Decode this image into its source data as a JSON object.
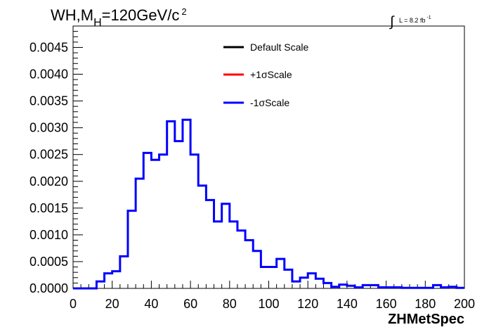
{
  "title": {
    "main": "WH,M",
    "sub": "H",
    "rest": "=120GeV/c",
    "sup": "2"
  },
  "lumi": {
    "integral": "∫",
    "text": "L = 8.2 fb",
    "sup": "-1"
  },
  "legend": [
    {
      "label": "Default Scale",
      "color": "#000000"
    },
    {
      "label": "+1σScale",
      "color": "#ff0000"
    },
    {
      "label": "-1σScale",
      "color": "#0000ff"
    }
  ],
  "chart_data": {
    "type": "line",
    "step": true,
    "title": "WH,MH=120GeV/c 2",
    "xlabel": "ZHMetSpec",
    "ylabel": "",
    "xlim": [
      0,
      200
    ],
    "ylim": [
      0,
      0.0049
    ],
    "xticks": [
      0,
      20,
      40,
      60,
      80,
      100,
      120,
      140,
      160,
      180,
      200
    ],
    "yticks": [
      0.0,
      0.0005,
      0.001,
      0.0015,
      0.002,
      0.0025,
      0.003,
      0.0035,
      0.004,
      0.0045
    ],
    "ytick_labels": [
      "0.0000",
      "0.0005",
      "0.0010",
      "0.0015",
      "0.0020",
      "0.0025",
      "0.0030",
      "0.0035",
      "0.0040",
      "0.0045"
    ],
    "bin_edges": [
      0,
      4,
      8,
      12,
      16,
      20,
      24,
      28,
      32,
      36,
      40,
      44,
      48,
      52,
      56,
      60,
      64,
      68,
      72,
      76,
      80,
      84,
      88,
      92,
      96,
      100,
      104,
      108,
      112,
      116,
      120,
      124,
      128,
      132,
      136,
      140,
      144,
      148,
      152,
      156,
      160,
      164,
      168,
      172,
      176,
      180,
      184,
      188,
      192,
      196,
      200
    ],
    "series": [
      {
        "name": "-1σScale",
        "color": "#0000ff",
        "values": [
          0,
          0,
          0,
          0.00013,
          0.00028,
          0.00032,
          0.0006,
          0.00145,
          0.00205,
          0.00253,
          0.0024,
          0.0025,
          0.00312,
          0.00275,
          0.00315,
          0.0025,
          0.00192,
          0.00165,
          0.00125,
          0.00158,
          0.00125,
          0.00108,
          0.0009,
          0.0007,
          0.0004,
          0.0004,
          0.00055,
          0.00035,
          0.00013,
          0.0002,
          0.00028,
          0.00018,
          0.0001,
          3e-05,
          7e-05,
          5e-05,
          2e-05,
          6e-05,
          6e-05,
          2e-05,
          2e-05,
          2e-05,
          1e-05,
          1e-05,
          1e-05,
          1e-05,
          6e-05,
          2e-05,
          3e-05,
          1e-05
        ]
      }
    ]
  }
}
